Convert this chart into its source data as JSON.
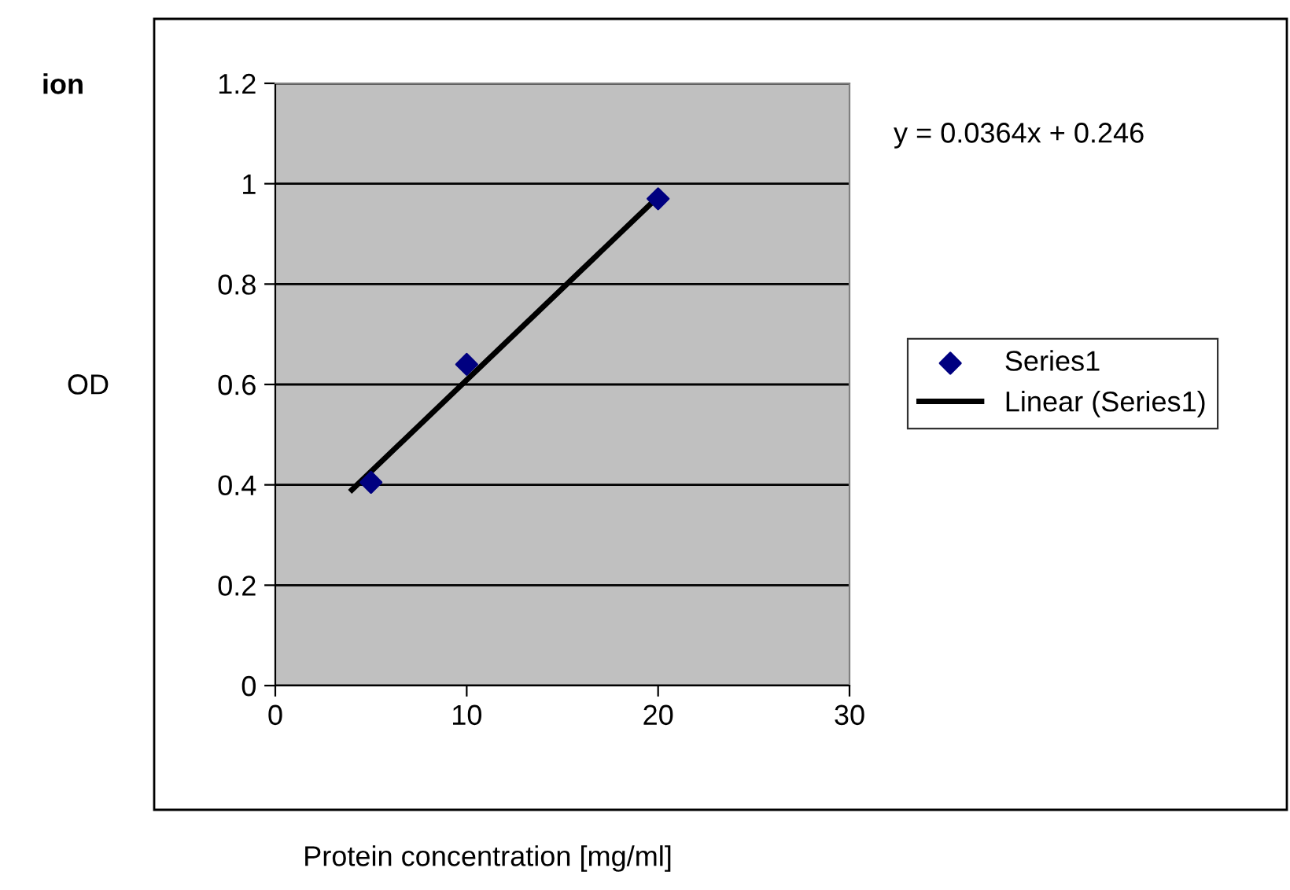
{
  "chart_data": {
    "type": "scatter",
    "title": "ion",
    "xlabel": "Protein concentration [mg/ml]",
    "ylabel": "OD",
    "series": [
      {
        "name": "Series1",
        "color": "#000080",
        "marker": "diamond",
        "x": [
          5,
          10,
          20
        ],
        "values": [
          0.405,
          0.64,
          0.97
        ]
      },
      {
        "name": "Linear (Series1)",
        "type": "line",
        "color": "#000000",
        "marker": "none",
        "line_style": "solid",
        "x": [
          4,
          20
        ],
        "values": [
          0.39,
          0.974
        ]
      }
    ],
    "annotations": [
      "y = 0.0364x + 0.246"
    ],
    "xlim": [
      0,
      30
    ],
    "xticks": [
      0,
      10,
      20,
      30
    ],
    "ylim": [
      0,
      1.2
    ],
    "yticks": [
      0,
      0.2,
      0.4,
      0.6,
      0.8,
      1,
      1.2
    ],
    "grid": "y",
    "legend": "right"
  }
}
